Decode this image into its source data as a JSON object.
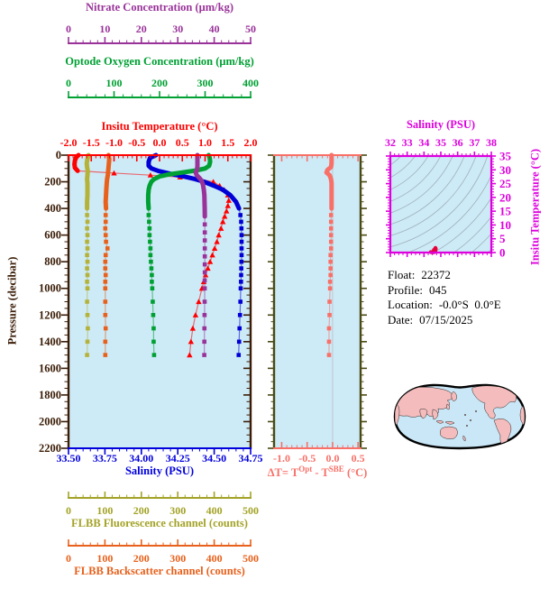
{
  "colors": {
    "panel_bg": "#CDEAF7",
    "contour": "#9FB0B8",
    "map_land": "#F4BCBC",
    "map_ocean": "#C9E7F6",
    "info_text": "#000000"
  },
  "axes": {
    "nitrate": {
      "title": "Nitrate Concentration (μm/kg)",
      "color": "#993399",
      "range": [
        0,
        50
      ],
      "tick_labels": [
        "0",
        "10",
        "20",
        "30",
        "40",
        "50"
      ],
      "minor_step": 2
    },
    "oxygen": {
      "title": "Optode Oxygen Concentration (μm/kg)",
      "color": "#00A033",
      "range": [
        0,
        400
      ],
      "tick_labels": [
        "0",
        "100",
        "200",
        "300",
        "400"
      ],
      "minor_step": 20
    },
    "temperature": {
      "title": "Insitu Temperature (°C)",
      "color": "#FF0000",
      "range": [
        -2,
        2
      ],
      "tick_labels": [
        "-2.0",
        "-1.5",
        "-1.0",
        "-0.5",
        "0.0",
        "0.5",
        "1.0",
        "1.5",
        "2.0"
      ],
      "minor_step": 0.1
    },
    "pressure": {
      "title": "Pressure (decibar)",
      "color": "#3B1D07",
      "range": [
        0,
        2200
      ],
      "tick_labels": [
        "0",
        "200",
        "400",
        "600",
        "800",
        "1000",
        "1200",
        "1400",
        "1600",
        "1800",
        "2000",
        "2200"
      ],
      "minor_step": 50
    },
    "salinity": {
      "title": "Salinity (PSU)",
      "color": "#0000DD",
      "range": [
        33.5,
        34.75
      ],
      "tick_labels": [
        "33.50",
        "33.75",
        "34.00",
        "34.25",
        "34.50",
        "34.75"
      ],
      "minor_step": 0.05
    },
    "delta_t": {
      "title_prefix": "ΔT= T",
      "title_sup1": "Opt",
      "title_mid": " - T",
      "title_sup2": "SBE",
      "title_suffix": " (°C)",
      "color": "#F87068",
      "border_color": "#4A4A14",
      "range": [
        -1.15,
        0.55
      ],
      "tick_labels": [
        "-1.0",
        "-0.5",
        "0.0",
        "0.5"
      ],
      "minor_step": 0.1
    },
    "fluorescence": {
      "title": "FLBB Fluorescence channel (counts)",
      "color": "#A3A328",
      "range": [
        0,
        500
      ],
      "tick_labels": [
        "0",
        "100",
        "200",
        "300",
        "400",
        "500"
      ],
      "minor_step": 20
    },
    "backscatter": {
      "title": "FLBB Backscatter channel (counts)",
      "color": "#E8611C",
      "range": [
        0,
        500
      ],
      "tick_labels": [
        "0",
        "100",
        "200",
        "300",
        "400",
        "500"
      ],
      "minor_step": 20
    },
    "ts_salinity": {
      "title": "Salinity (PSU)",
      "color": "#DD00DD",
      "range": [
        32,
        38
      ],
      "tick_labels": [
        "32",
        "33",
        "34",
        "35",
        "36",
        "37",
        "38"
      ],
      "minor_step": 0.25
    },
    "ts_temperature": {
      "title": "Insitu Temperature (°C)",
      "color": "#DD00DD",
      "range": [
        0,
        35
      ],
      "tick_labels": [
        "0",
        "5",
        "10",
        "15",
        "20",
        "25",
        "30",
        "35"
      ],
      "minor_step": 1
    }
  },
  "info": {
    "lines": [
      {
        "label": "Float:",
        "value": "22372"
      },
      {
        "label": "Profile:",
        "value": "045"
      },
      {
        "label": "Location:",
        "value": "-0.0°S  0.0°E"
      },
      {
        "label": "Date:",
        "value": "07/15/2025"
      }
    ]
  },
  "chart_data": {
    "type": "line",
    "description": "Float profile plot: properties vs pressure (0-2200 dbar, profiles to 1500 dbar), ΔT panel, T-S diagram with isopycnals, world map",
    "pressure_axis": {
      "label": "Pressure (decibar)",
      "range": [
        0,
        2200
      ]
    },
    "profiles": [
      {
        "name": "insitu-temperature",
        "axis": "temperature",
        "units": "°C",
        "color": "#FF0000",
        "marker": "triangle",
        "thick_to": 118,
        "marker_from": 130,
        "points": [
          [
            0,
            -1.78
          ],
          [
            15,
            -1.83
          ],
          [
            40,
            -1.86
          ],
          [
            70,
            -1.87
          ],
          [
            95,
            -1.86
          ],
          [
            118,
            -1.8
          ],
          [
            135,
            -1.0
          ],
          [
            150,
            -0.2
          ],
          [
            165,
            0.45
          ],
          [
            180,
            0.85
          ],
          [
            200,
            1.18
          ],
          [
            230,
            1.32
          ],
          [
            260,
            1.42
          ],
          [
            300,
            1.5
          ],
          [
            340,
            1.52
          ],
          [
            380,
            1.5
          ],
          [
            420,
            1.47
          ],
          [
            460,
            1.43
          ],
          [
            500,
            1.39
          ],
          [
            550,
            1.35
          ],
          [
            600,
            1.3
          ],
          [
            650,
            1.26
          ],
          [
            700,
            1.21
          ],
          [
            750,
            1.16
          ],
          [
            800,
            1.11
          ],
          [
            850,
            1.06
          ],
          [
            900,
            1.01
          ],
          [
            950,
            0.97
          ],
          [
            1000,
            0.93
          ],
          [
            1100,
            0.86
          ],
          [
            1200,
            0.79
          ],
          [
            1300,
            0.73
          ],
          [
            1400,
            0.69
          ],
          [
            1500,
            0.66
          ]
        ]
      },
      {
        "name": "salinity",
        "axis": "salinity",
        "units": "PSU",
        "color": "#0000D6",
        "marker": "square",
        "thick_to": 430,
        "marker_from": 450,
        "points": [
          [
            0,
            34.1
          ],
          [
            20,
            34.06
          ],
          [
            50,
            34.05
          ],
          [
            80,
            34.05
          ],
          [
            100,
            34.07
          ],
          [
            120,
            34.12
          ],
          [
            140,
            34.2
          ],
          [
            160,
            34.29
          ],
          [
            180,
            34.37
          ],
          [
            200,
            34.43
          ],
          [
            230,
            34.5
          ],
          [
            260,
            34.56
          ],
          [
            300,
            34.61
          ],
          [
            350,
            34.65
          ],
          [
            400,
            34.67
          ],
          [
            450,
            34.68
          ],
          [
            500,
            34.685
          ],
          [
            550,
            34.687
          ],
          [
            600,
            34.688
          ],
          [
            650,
            34.688
          ],
          [
            700,
            34.688
          ],
          [
            750,
            34.688
          ],
          [
            800,
            34.687
          ],
          [
            850,
            34.686
          ],
          [
            900,
            34.685
          ],
          [
            950,
            34.684
          ],
          [
            1000,
            34.682
          ],
          [
            1100,
            34.68
          ],
          [
            1200,
            34.677
          ],
          [
            1300,
            34.674
          ],
          [
            1400,
            34.671
          ],
          [
            1500,
            34.668
          ]
        ]
      },
      {
        "name": "optode-oxygen",
        "axis": "oxygen",
        "units": "μm/kg",
        "color": "#00A033",
        "marker": "square",
        "thick_to": 430,
        "marker_from": 450,
        "points": [
          [
            0,
            308
          ],
          [
            20,
            310
          ],
          [
            50,
            311
          ],
          [
            80,
            309
          ],
          [
            100,
            300
          ],
          [
            115,
            280
          ],
          [
            130,
            250
          ],
          [
            145,
            220
          ],
          [
            160,
            200
          ],
          [
            180,
            188
          ],
          [
            200,
            182
          ],
          [
            230,
            178
          ],
          [
            260,
            176
          ],
          [
            300,
            175
          ],
          [
            350,
            175
          ],
          [
            400,
            176
          ],
          [
            450,
            176
          ],
          [
            500,
            177
          ],
          [
            550,
            178
          ],
          [
            600,
            178
          ],
          [
            650,
            179
          ],
          [
            700,
            180
          ],
          [
            750,
            180
          ],
          [
            800,
            181
          ],
          [
            850,
            182
          ],
          [
            900,
            183
          ],
          [
            950,
            183
          ],
          [
            1000,
            184
          ],
          [
            1100,
            185
          ],
          [
            1200,
            186
          ],
          [
            1300,
            187
          ],
          [
            1400,
            187
          ],
          [
            1500,
            188
          ]
        ]
      },
      {
        "name": "nitrate",
        "axis": "nitrate",
        "units": "μm/kg",
        "color": "#993399",
        "marker": "square",
        "thick_to": 460,
        "marker_from": 480,
        "points": [
          [
            0,
            35.4
          ],
          [
            40,
            35.4
          ],
          [
            80,
            35.4
          ],
          [
            110,
            35.3
          ],
          [
            130,
            34.9
          ],
          [
            150,
            35.2
          ],
          [
            170,
            35.9
          ],
          [
            190,
            36.5
          ],
          [
            220,
            36.9
          ],
          [
            260,
            37.15
          ],
          [
            300,
            37.3
          ],
          [
            350,
            37.35
          ],
          [
            400,
            37.4
          ],
          [
            460,
            37.42
          ],
          [
            520,
            37.42
          ],
          [
            580,
            37.42
          ],
          [
            640,
            37.42
          ],
          [
            700,
            37.42
          ],
          [
            760,
            37.42
          ],
          [
            820,
            37.42
          ],
          [
            880,
            37.42
          ],
          [
            940,
            37.4
          ],
          [
            1000,
            37.4
          ],
          [
            1100,
            37.38
          ],
          [
            1200,
            37.35
          ],
          [
            1300,
            37.32
          ],
          [
            1400,
            37.3
          ],
          [
            1500,
            37.28
          ]
        ]
      },
      {
        "name": "flbb-fluorescence",
        "axis": "fluorescence",
        "units": "counts",
        "color": "#B5B23A",
        "marker": "square",
        "thick_to": 430,
        "marker_from": 450,
        "points": [
          [
            0,
            55
          ],
          [
            30,
            52
          ],
          [
            60,
            50
          ],
          [
            90,
            51
          ],
          [
            120,
            53
          ],
          [
            150,
            52
          ],
          [
            180,
            51
          ],
          [
            210,
            52
          ],
          [
            250,
            52
          ],
          [
            300,
            52
          ],
          [
            350,
            51
          ],
          [
            400,
            51
          ],
          [
            450,
            51
          ],
          [
            500,
            52
          ],
          [
            550,
            51
          ],
          [
            600,
            52
          ],
          [
            650,
            51
          ],
          [
            700,
            52
          ],
          [
            750,
            51
          ],
          [
            800,
            52
          ],
          [
            850,
            51
          ],
          [
            900,
            52
          ],
          [
            950,
            51
          ],
          [
            1000,
            52
          ],
          [
            1100,
            51
          ],
          [
            1200,
            52
          ],
          [
            1300,
            53
          ],
          [
            1400,
            52
          ],
          [
            1500,
            51
          ]
        ]
      },
      {
        "name": "flbb-backscatter",
        "axis": "backscatter",
        "units": "counts",
        "color": "#E8611C",
        "marker": "square",
        "thick_to": 430,
        "marker_from": 450,
        "points": [
          [
            0,
            110
          ],
          [
            30,
            112
          ],
          [
            60,
            111
          ],
          [
            90,
            110
          ],
          [
            120,
            109
          ],
          [
            150,
            108
          ],
          [
            180,
            106
          ],
          [
            210,
            105
          ],
          [
            250,
            104
          ],
          [
            300,
            103
          ],
          [
            350,
            102
          ],
          [
            400,
            103
          ],
          [
            450,
            102
          ],
          [
            500,
            102
          ],
          [
            550,
            101
          ],
          [
            600,
            102
          ],
          [
            650,
            103
          ],
          [
            700,
            107
          ],
          [
            750,
            102
          ],
          [
            800,
            101
          ],
          [
            850,
            101
          ],
          [
            900,
            102
          ],
          [
            950,
            101
          ],
          [
            1000,
            101
          ],
          [
            1100,
            101
          ],
          [
            1200,
            101
          ],
          [
            1300,
            102
          ],
          [
            1400,
            101
          ],
          [
            1500,
            101
          ]
        ]
      }
    ],
    "delta_t_profile": {
      "name": "delta-t",
      "units": "°C",
      "color": "#F87068",
      "marker": "square",
      "thick_to": 430,
      "marker_from": 450,
      "points": [
        [
          0,
          -0.02
        ],
        [
          30,
          -0.02
        ],
        [
          60,
          -0.02
        ],
        [
          90,
          -0.03
        ],
        [
          110,
          -0.1
        ],
        [
          130,
          -0.12
        ],
        [
          150,
          -0.06
        ],
        [
          180,
          -0.03
        ],
        [
          210,
          -0.02
        ],
        [
          250,
          -0.02
        ],
        [
          300,
          -0.02
        ],
        [
          350,
          -0.02
        ],
        [
          400,
          -0.02
        ],
        [
          450,
          -0.03
        ],
        [
          500,
          -0.03
        ],
        [
          550,
          -0.03
        ],
        [
          600,
          -0.03
        ],
        [
          650,
          -0.03
        ],
        [
          700,
          -0.03
        ],
        [
          750,
          -0.04
        ],
        [
          800,
          -0.04
        ],
        [
          850,
          -0.04
        ],
        [
          900,
          -0.04
        ],
        [
          950,
          -0.05
        ],
        [
          1000,
          -0.05
        ],
        [
          1100,
          -0.06
        ],
        [
          1200,
          -0.06
        ],
        [
          1300,
          -0.07
        ],
        [
          1400,
          -0.07
        ],
        [
          1500,
          -0.07
        ]
      ]
    },
    "ts_scatter": {
      "color": "#E8003C",
      "points": [
        [
          34.52,
          0.15
        ],
        [
          34.55,
          0.3
        ],
        [
          34.58,
          0.5
        ],
        [
          34.6,
          0.7
        ],
        [
          34.62,
          0.9
        ],
        [
          34.64,
          1.1
        ],
        [
          34.66,
          1.3
        ],
        [
          34.67,
          1.5
        ],
        [
          34.68,
          1.7
        ],
        [
          34.69,
          1.55
        ],
        [
          34.7,
          1.3
        ],
        [
          34.69,
          1.0
        ],
        [
          34.68,
          0.7
        ],
        [
          34.66,
          0.4
        ],
        [
          34.63,
          0.2
        ],
        [
          34.57,
          0.1
        ],
        [
          34.5,
          0.05
        ],
        [
          34.45,
          0.1
        ],
        [
          34.4,
          0.15
        ],
        [
          34.59,
          0.95
        ],
        [
          34.64,
          0.55
        ],
        [
          34.61,
          0.3
        ]
      ]
    },
    "ts_isopycnal_count": 14
  }
}
